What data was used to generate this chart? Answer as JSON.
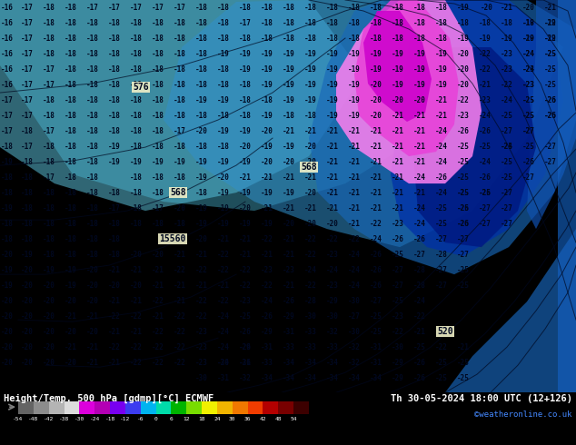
{
  "title_left": "Height/Temp. 500 hPa [gdmp][°C] ECMWF",
  "title_right": "Th 30-05-2024 18:00 UTC (12+126)",
  "credit": "©weatheronline.co.uk",
  "colorbar_values": [
    -54,
    -48,
    -42,
    -38,
    -30,
    -24,
    -18,
    -12,
    -6,
    0,
    6,
    12,
    18,
    24,
    30,
    36,
    42,
    48,
    54
  ],
  "colorbar_colors": [
    "#646464",
    "#8c8c8c",
    "#b4b4b4",
    "#dcdcdc",
    "#dc00dc",
    "#b400b4",
    "#7800f0",
    "#3c3cf0",
    "#00b4f0",
    "#00dcaa",
    "#00b400",
    "#78dc00",
    "#f0f000",
    "#f0b400",
    "#f07800",
    "#f03c00",
    "#b40000",
    "#780000",
    "#3c0000"
  ],
  "bg_color": "#00d4d4",
  "bg_color2": "#00c0ff",
  "light_blue": "#64c8ff",
  "mid_blue": "#3296e0",
  "deep_blue": "#1464c8",
  "navy": "#0028a0",
  "pink_light": "#ff78f0",
  "pink_mid": "#f030d8",
  "pink_deep": "#e000c8",
  "magenta": "#c800c0"
}
